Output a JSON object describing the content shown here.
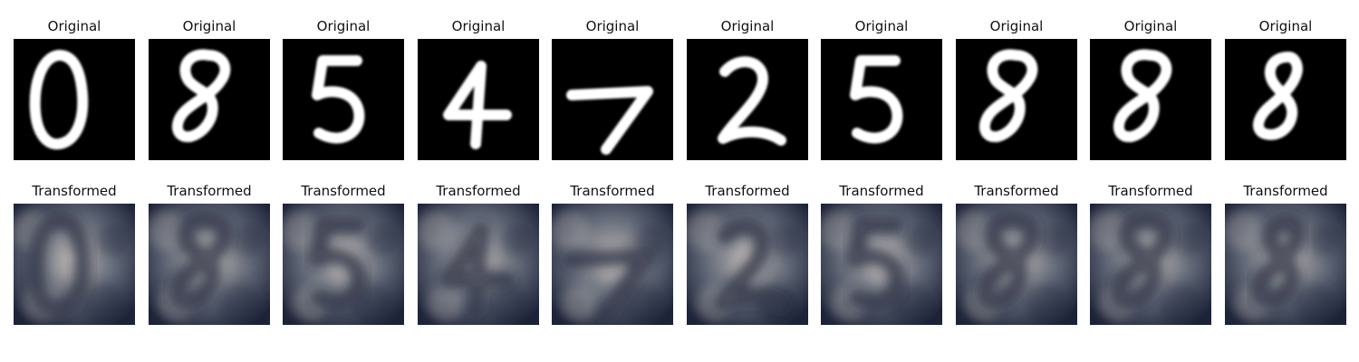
{
  "figure": {
    "rows": [
      {
        "panel_title": "Original",
        "kind": "original",
        "digits": [
          "0",
          "8",
          "5",
          "4",
          "7",
          "2",
          "5",
          "8",
          "8",
          "8"
        ]
      },
      {
        "panel_title": "Transformed",
        "kind": "transformed",
        "digits": [
          "0",
          "8",
          "5",
          "4",
          "7",
          "2",
          "5",
          "8",
          "8",
          "8"
        ]
      }
    ]
  },
  "colors": {
    "original_background": "#000000",
    "original_stroke": "#ffffff",
    "transformed_base": "#5f6675",
    "transformed_dark": "#1d2338",
    "transformed_light": "#b9b5b2"
  }
}
